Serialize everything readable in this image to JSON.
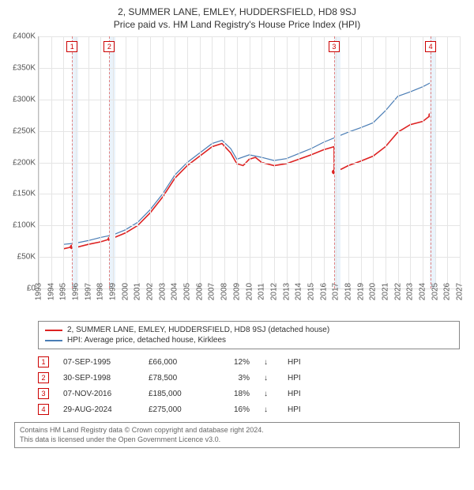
{
  "title_line1": "2, SUMMER LANE, EMLEY, HUDDERSFIELD, HD8 9SJ",
  "title_line2": "Price paid vs. HM Land Registry's House Price Index (HPI)",
  "chart": {
    "type": "line",
    "x_min": 1993,
    "x_max": 2027,
    "y_min": 0,
    "y_max": 400000,
    "y_ticks": [
      0,
      50000,
      100000,
      150000,
      200000,
      250000,
      300000,
      350000,
      400000
    ],
    "y_tick_labels": [
      "£0",
      "£50K",
      "£100K",
      "£150K",
      "£200K",
      "£250K",
      "£300K",
      "£350K",
      "£400K"
    ],
    "x_ticks": [
      1993,
      1994,
      1995,
      1996,
      1997,
      1998,
      1999,
      2000,
      2001,
      2002,
      2003,
      2004,
      2005,
      2006,
      2007,
      2008,
      2009,
      2010,
      2011,
      2012,
      2013,
      2014,
      2015,
      2016,
      2017,
      2018,
      2019,
      2020,
      2021,
      2022,
      2023,
      2024,
      2025,
      2026,
      2027
    ],
    "colors": {
      "red": "#d22222",
      "blue": "#4a7db5",
      "grid": "#e5e5e5",
      "band": "#eaf3fb",
      "marker_border": "#cc0000",
      "axis": "#bbbbbb",
      "background": "#ffffff"
    },
    "bands": [
      {
        "from": 1995.7,
        "to": 1996.2
      },
      {
        "from": 1998.7,
        "to": 1999.2
      },
      {
        "from": 2016.85,
        "to": 2017.35
      },
      {
        "from": 2024.6,
        "to": 2025.1
      }
    ],
    "sale_markers": [
      {
        "n": "1",
        "x": 1995.7
      },
      {
        "n": "2",
        "x": 1998.7
      },
      {
        "n": "3",
        "x": 2016.85
      },
      {
        "n": "4",
        "x": 2024.65
      }
    ],
    "red_series": [
      [
        1995.0,
        63000
      ],
      [
        1995.7,
        66000
      ],
      [
        1996.0,
        65000
      ],
      [
        1997.0,
        70000
      ],
      [
        1998.0,
        74000
      ],
      [
        1998.75,
        78500
      ],
      [
        1999.0,
        80000
      ],
      [
        2000.0,
        88000
      ],
      [
        2001.0,
        100000
      ],
      [
        2002.0,
        120000
      ],
      [
        2003.0,
        145000
      ],
      [
        2004.0,
        175000
      ],
      [
        2005.0,
        195000
      ],
      [
        2006.0,
        210000
      ],
      [
        2007.0,
        225000
      ],
      [
        2007.8,
        230000
      ],
      [
        2008.5,
        215000
      ],
      [
        2009.0,
        198000
      ],
      [
        2009.5,
        195000
      ],
      [
        2010.0,
        205000
      ],
      [
        2010.5,
        208000
      ],
      [
        2011.0,
        200000
      ],
      [
        2012.0,
        195000
      ],
      [
        2013.0,
        198000
      ],
      [
        2014.0,
        205000
      ],
      [
        2015.0,
        212000
      ],
      [
        2016.0,
        220000
      ],
      [
        2016.85,
        225000
      ],
      [
        2016.86,
        185000
      ],
      [
        2017.5,
        190000
      ],
      [
        2018.0,
        195000
      ],
      [
        2019.0,
        202000
      ],
      [
        2020.0,
        210000
      ],
      [
        2021.0,
        225000
      ],
      [
        2022.0,
        248000
      ],
      [
        2023.0,
        260000
      ],
      [
        2024.0,
        265000
      ],
      [
        2024.65,
        275000
      ]
    ],
    "red_dots": [
      [
        1995.7,
        66000
      ],
      [
        1998.75,
        78500
      ],
      [
        2016.86,
        185000
      ],
      [
        2024.65,
        275000
      ]
    ],
    "blue_series": [
      [
        1995.0,
        70000
      ],
      [
        1996.0,
        72000
      ],
      [
        1997.0,
        76000
      ],
      [
        1998.0,
        81000
      ],
      [
        1999.0,
        85000
      ],
      [
        2000.0,
        93000
      ],
      [
        2001.0,
        105000
      ],
      [
        2002.0,
        125000
      ],
      [
        2003.0,
        150000
      ],
      [
        2004.0,
        180000
      ],
      [
        2005.0,
        200000
      ],
      [
        2006.0,
        215000
      ],
      [
        2007.0,
        230000
      ],
      [
        2007.8,
        235000
      ],
      [
        2008.5,
        222000
      ],
      [
        2009.0,
        205000
      ],
      [
        2010.0,
        212000
      ],
      [
        2011.0,
        208000
      ],
      [
        2012.0,
        203000
      ],
      [
        2013.0,
        206000
      ],
      [
        2014.0,
        214000
      ],
      [
        2015.0,
        222000
      ],
      [
        2016.0,
        232000
      ],
      [
        2017.0,
        240000
      ],
      [
        2018.0,
        248000
      ],
      [
        2019.0,
        255000
      ],
      [
        2020.0,
        263000
      ],
      [
        2021.0,
        282000
      ],
      [
        2022.0,
        305000
      ],
      [
        2023.0,
        312000
      ],
      [
        2024.0,
        320000
      ],
      [
        2024.8,
        328000
      ]
    ]
  },
  "legend": {
    "red_label": "2, SUMMER LANE, EMLEY, HUDDERSFIELD, HD8 9SJ (detached house)",
    "blue_label": "HPI: Average price, detached house, Kirklees"
  },
  "sales": [
    {
      "n": "1",
      "date": "07-SEP-1995",
      "price": "£66,000",
      "pct": "12%",
      "arrow": "↓",
      "hpi": "HPI"
    },
    {
      "n": "2",
      "date": "30-SEP-1998",
      "price": "£78,500",
      "pct": "3%",
      "arrow": "↓",
      "hpi": "HPI"
    },
    {
      "n": "3",
      "date": "07-NOV-2016",
      "price": "£185,000",
      "pct": "18%",
      "arrow": "↓",
      "hpi": "HPI"
    },
    {
      "n": "4",
      "date": "29-AUG-2024",
      "price": "£275,000",
      "pct": "16%",
      "arrow": "↓",
      "hpi": "HPI"
    }
  ],
  "footer_line1": "Contains HM Land Registry data © Crown copyright and database right 2024.",
  "footer_line2": "This data is licensed under the Open Government Licence v3.0."
}
